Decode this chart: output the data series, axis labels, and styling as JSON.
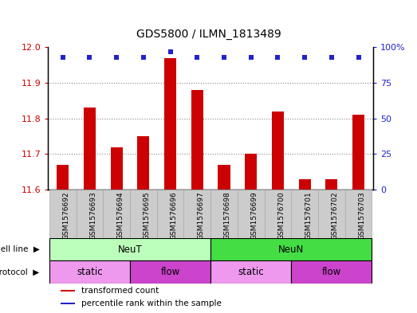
{
  "title": "GDS5800 / ILMN_1813489",
  "samples": [
    "GSM1576692",
    "GSM1576693",
    "GSM1576694",
    "GSM1576695",
    "GSM1576696",
    "GSM1576697",
    "GSM1576698",
    "GSM1576699",
    "GSM1576700",
    "GSM1576701",
    "GSM1576702",
    "GSM1576703"
  ],
  "bar_values": [
    11.67,
    11.83,
    11.72,
    11.75,
    11.97,
    11.88,
    11.67,
    11.7,
    11.82,
    11.63,
    11.63,
    11.81
  ],
  "percentile_values": [
    93,
    93,
    93,
    93,
    97,
    93,
    93,
    93,
    93,
    93,
    93,
    93
  ],
  "bar_color": "#cc0000",
  "percentile_color": "#2222cc",
  "ylim_left": [
    11.6,
    12.0
  ],
  "ylim_right": [
    0,
    100
  ],
  "yticks_left": [
    11.6,
    11.7,
    11.8,
    11.9,
    12.0
  ],
  "yticks_right": [
    0,
    25,
    50,
    75,
    100
  ],
  "cell_line_groups": [
    {
      "label": "NeuT",
      "start": 0,
      "end": 6,
      "color": "#bbffbb"
    },
    {
      "label": "NeuN",
      "start": 6,
      "end": 12,
      "color": "#44dd44"
    }
  ],
  "protocol_groups": [
    {
      "label": "static",
      "start": 0,
      "end": 3,
      "color": "#ee99ee"
    },
    {
      "label": "flow",
      "start": 3,
      "end": 6,
      "color": "#cc44cc"
    },
    {
      "label": "static",
      "start": 6,
      "end": 9,
      "color": "#ee99ee"
    },
    {
      "label": "flow",
      "start": 9,
      "end": 12,
      "color": "#cc44cc"
    }
  ],
  "legend_items": [
    {
      "color": "#cc0000",
      "label": "transformed count"
    },
    {
      "color": "#2222cc",
      "label": "percentile rank within the sample"
    }
  ],
  "bar_width": 0.45,
  "xtick_bg_color": "#cccccc",
  "xtick_border_color": "#aaaaaa",
  "grid_linestyle": "dotted",
  "grid_color": "#888888",
  "grid_linewidth": 0.8
}
